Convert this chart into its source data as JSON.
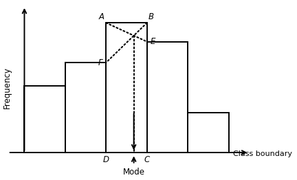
{
  "bar_lefts": [
    0,
    1,
    2,
    3,
    4
  ],
  "bar_heights": [
    3.2,
    4.3,
    6.2,
    5.3,
    1.9
  ],
  "bar_width": 1,
  "modal_bar_index": 2,
  "colors": {
    "bar_edge": "#000000",
    "bar_face": "#ffffff",
    "dotted_line": "#000000",
    "arrow": "#000000",
    "text": "#000000"
  },
  "figsize": [
    4.32,
    2.62
  ],
  "dpi": 100,
  "xlim": [
    -0.55,
    5.8
  ],
  "ylim": [
    -1.1,
    7.2
  ]
}
